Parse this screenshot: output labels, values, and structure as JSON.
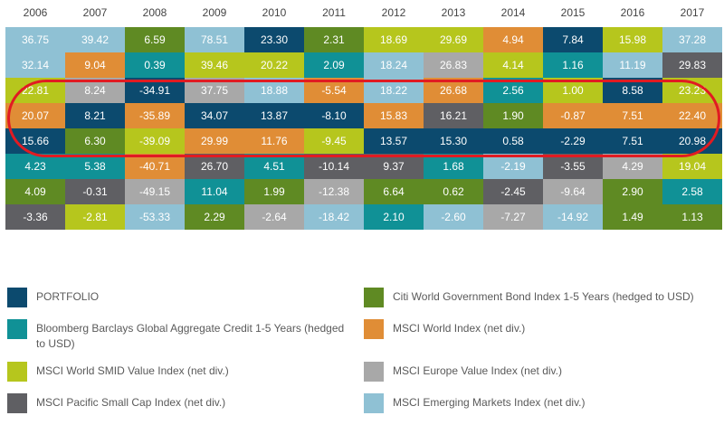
{
  "chart_data": {
    "type": "table",
    "title": "",
    "years": [
      "2006",
      "2007",
      "2008",
      "2009",
      "2010",
      "2011",
      "2012",
      "2013",
      "2014",
      "2015",
      "2016",
      "2017"
    ],
    "highlighted_rows": [
      2,
      3,
      4
    ],
    "rows": [
      [
        {
          "v": "36.75",
          "s": "em"
        },
        {
          "v": "39.42",
          "s": "em"
        },
        {
          "v": "6.59",
          "s": "citi"
        },
        {
          "v": "78.51",
          "s": "em"
        },
        {
          "v": "23.30",
          "s": "portfolio"
        },
        {
          "v": "2.31",
          "s": "citi"
        },
        {
          "v": "18.69",
          "s": "smid"
        },
        {
          "v": "29.69",
          "s": "smid"
        },
        {
          "v": "4.94",
          "s": "world"
        },
        {
          "v": "7.84",
          "s": "portfolio"
        },
        {
          "v": "15.98",
          "s": "smid"
        },
        {
          "v": "37.28",
          "s": "em"
        }
      ],
      [
        {
          "v": "32.14",
          "s": "em"
        },
        {
          "v": "9.04",
          "s": "world"
        },
        {
          "v": "0.39",
          "s": "bbg"
        },
        {
          "v": "39.46",
          "s": "smid"
        },
        {
          "v": "20.22",
          "s": "smid"
        },
        {
          "v": "2.09",
          "s": "bbg"
        },
        {
          "v": "18.24",
          "s": "em"
        },
        {
          "v": "26.83",
          "s": "europe"
        },
        {
          "v": "4.14",
          "s": "smid"
        },
        {
          "v": "1.16",
          "s": "bbg"
        },
        {
          "v": "11.19",
          "s": "em"
        },
        {
          "v": "29.83",
          "s": "pacific"
        }
      ],
      [
        {
          "v": "22.81",
          "s": "smid"
        },
        {
          "v": "8.24",
          "s": "europe"
        },
        {
          "v": "-34.91",
          "s": "portfolio"
        },
        {
          "v": "37.75",
          "s": "europe"
        },
        {
          "v": "18.88",
          "s": "em"
        },
        {
          "v": "-5.54",
          "s": "world"
        },
        {
          "v": "18.22",
          "s": "em"
        },
        {
          "v": "26.68",
          "s": "world"
        },
        {
          "v": "2.56",
          "s": "bbg"
        },
        {
          "v": "1.00",
          "s": "smid"
        },
        {
          "v": "8.58",
          "s": "portfolio"
        },
        {
          "v": "23.23",
          "s": "smid"
        }
      ],
      [
        {
          "v": "20.07",
          "s": "world"
        },
        {
          "v": "8.21",
          "s": "portfolio"
        },
        {
          "v": "-35.89",
          "s": "world"
        },
        {
          "v": "34.07",
          "s": "portfolio"
        },
        {
          "v": "13.87",
          "s": "portfolio"
        },
        {
          "v": "-8.10",
          "s": "portfolio"
        },
        {
          "v": "15.83",
          "s": "world"
        },
        {
          "v": "16.21",
          "s": "pacific"
        },
        {
          "v": "1.90",
          "s": "citi"
        },
        {
          "v": "-0.87",
          "s": "world"
        },
        {
          "v": "7.51",
          "s": "world"
        },
        {
          "v": "22.40",
          "s": "world"
        }
      ],
      [
        {
          "v": "15.66",
          "s": "portfolio"
        },
        {
          "v": "6.30",
          "s": "citi"
        },
        {
          "v": "-39.09",
          "s": "smid"
        },
        {
          "v": "29.99",
          "s": "world"
        },
        {
          "v": "11.76",
          "s": "world"
        },
        {
          "v": "-9.45",
          "s": "smid"
        },
        {
          "v": "13.57",
          "s": "portfolio"
        },
        {
          "v": "15.30",
          "s": "portfolio"
        },
        {
          "v": "0.58",
          "s": "portfolio"
        },
        {
          "v": "-2.29",
          "s": "portfolio"
        },
        {
          "v": "7.51",
          "s": "portfolio"
        },
        {
          "v": "20.98",
          "s": "portfolio"
        }
      ],
      [
        {
          "v": "4.23",
          "s": "bbg"
        },
        {
          "v": "5.38",
          "s": "bbg"
        },
        {
          "v": "-40.71",
          "s": "world"
        },
        {
          "v": "26.70",
          "s": "pacific"
        },
        {
          "v": "4.51",
          "s": "bbg"
        },
        {
          "v": "-10.14",
          "s": "pacific"
        },
        {
          "v": "9.37",
          "s": "pacific"
        },
        {
          "v": "1.68",
          "s": "bbg"
        },
        {
          "v": "-2.19",
          "s": "em"
        },
        {
          "v": "-3.55",
          "s": "pacific"
        },
        {
          "v": "4.29",
          "s": "europe"
        },
        {
          "v": "19.04",
          "s": "smid"
        }
      ],
      [
        {
          "v": "4.09",
          "s": "citi"
        },
        {
          "v": "-0.31",
          "s": "pacific"
        },
        {
          "v": "-49.15",
          "s": "europe"
        },
        {
          "v": "11.04",
          "s": "bbg"
        },
        {
          "v": "1.99",
          "s": "citi"
        },
        {
          "v": "-12.38",
          "s": "europe"
        },
        {
          "v": "6.64",
          "s": "citi"
        },
        {
          "v": "0.62",
          "s": "citi"
        },
        {
          "v": "-2.45",
          "s": "pacific"
        },
        {
          "v": "-9.64",
          "s": "europe"
        },
        {
          "v": "2.90",
          "s": "citi"
        },
        {
          "v": "2.58",
          "s": "bbg"
        }
      ],
      [
        {
          "v": "-3.36",
          "s": "pacific"
        },
        {
          "v": "-2.81",
          "s": "smid"
        },
        {
          "v": "-53.33",
          "s": "em"
        },
        {
          "v": "2.29",
          "s": "citi"
        },
        {
          "v": "-2.64",
          "s": "europe"
        },
        {
          "v": "-18.42",
          "s": "em"
        },
        {
          "v": "2.10",
          "s": "bbg"
        },
        {
          "v": "-2.60",
          "s": "em"
        },
        {
          "v": "-7.27",
          "s": "europe"
        },
        {
          "v": "-14.92",
          "s": "em"
        },
        {
          "v": "1.49",
          "s": "citi"
        },
        {
          "v": "1.13",
          "s": "citi"
        }
      ]
    ],
    "series": [
      {
        "key": "portfolio",
        "name": "PORTFOLIO",
        "color": "#0c4a6e"
      },
      {
        "key": "bbg",
        "name": "Bloomberg Barclays Global Aggregate Credit 1-5 Years (hedged to USD)",
        "color": "#109196"
      },
      {
        "key": "smid",
        "name": "MSCI World SMID Value Index (net div.)",
        "color": "#b6c61d"
      },
      {
        "key": "pacific",
        "name": "MSCI Pacific Small Cap Index (net div.)",
        "color": "#5f5f63"
      },
      {
        "key": "citi",
        "name": "Citi World Government Bond Index 1-5 Years (hedged to USD)",
        "color": "#5f8a23"
      },
      {
        "key": "world",
        "name": "MSCI World Index (net div.)",
        "color": "#e08d36"
      },
      {
        "key": "europe",
        "name": "MSCI Europe Value Index (net div.)",
        "color": "#a8a8a8"
      },
      {
        "key": "em",
        "name": "MSCI Emerging Markets Index (net div.)",
        "color": "#8fc1d4"
      }
    ]
  }
}
